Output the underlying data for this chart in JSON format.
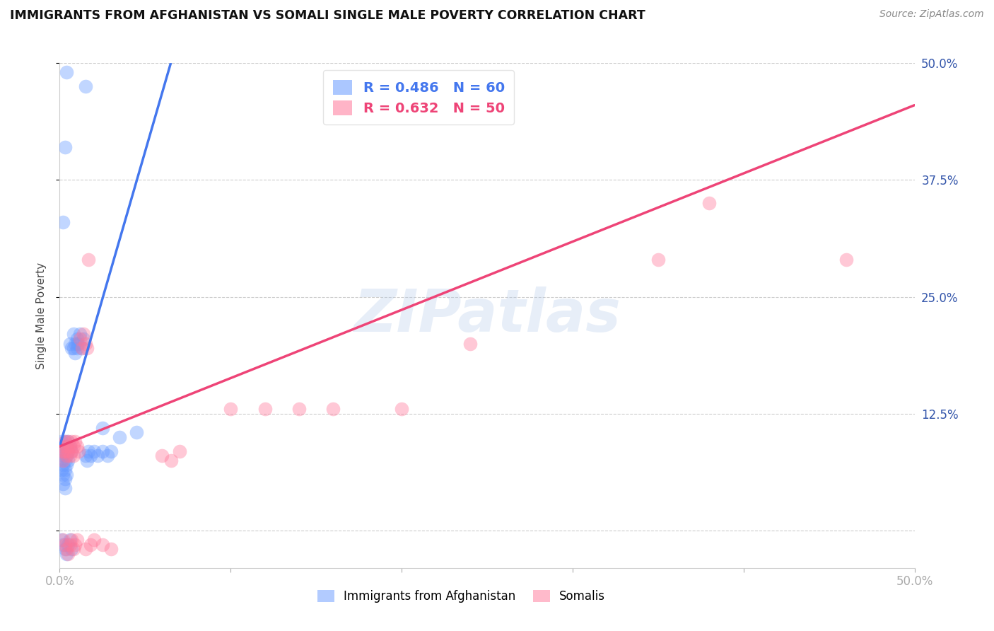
{
  "title": "IMMIGRANTS FROM AFGHANISTAN VS SOMALI SINGLE MALE POVERTY CORRELATION CHART",
  "source": "Source: ZipAtlas.com",
  "ylabel": "Single Male Poverty",
  "legend_entry1": "R = 0.486   N = 60",
  "legend_entry2": "R = 0.632   N = 50",
  "legend_label1": "Immigrants from Afghanistan",
  "legend_label2": "Somalis",
  "watermark": "ZIPatlas",
  "background_color": "#ffffff",
  "blue_color": "#6699ff",
  "pink_color": "#ff7799",
  "blue_trend": [
    -0.005,
    0.5,
    0.07,
    0.5
  ],
  "pink_trend": [
    0.0,
    0.09,
    0.5,
    0.455
  ],
  "xlim": [
    0.0,
    0.5
  ],
  "ylim": [
    -0.04,
    0.5
  ],
  "yticks": [
    0.0,
    0.125,
    0.25,
    0.375,
    0.5
  ],
  "ytick_labels_right": [
    "",
    "12.5%",
    "25.0%",
    "37.5%",
    "50.0%"
  ],
  "xtick_positions": [
    0.0,
    0.1,
    0.2,
    0.3,
    0.4,
    0.5
  ],
  "xtick_labels": [
    "0.0%",
    "",
    "",
    "",
    "",
    "50.0%"
  ],
  "blue_scatter": [
    [
      0.001,
      0.095
    ],
    [
      0.001,
      0.085
    ],
    [
      0.001,
      0.075
    ],
    [
      0.001,
      0.065
    ],
    [
      0.002,
      0.09
    ],
    [
      0.002,
      0.08
    ],
    [
      0.002,
      0.07
    ],
    [
      0.002,
      0.06
    ],
    [
      0.002,
      0.05
    ],
    [
      0.003,
      0.095
    ],
    [
      0.003,
      0.085
    ],
    [
      0.003,
      0.075
    ],
    [
      0.003,
      0.065
    ],
    [
      0.003,
      0.055
    ],
    [
      0.003,
      0.045
    ],
    [
      0.004,
      0.09
    ],
    [
      0.004,
      0.08
    ],
    [
      0.004,
      0.07
    ],
    [
      0.004,
      0.06
    ],
    [
      0.005,
      0.095
    ],
    [
      0.005,
      0.085
    ],
    [
      0.005,
      0.075
    ],
    [
      0.006,
      0.09
    ],
    [
      0.006,
      0.2
    ],
    [
      0.007,
      0.195
    ],
    [
      0.007,
      0.085
    ],
    [
      0.008,
      0.21
    ],
    [
      0.008,
      0.195
    ],
    [
      0.009,
      0.2
    ],
    [
      0.009,
      0.19
    ],
    [
      0.01,
      0.205
    ],
    [
      0.01,
      0.195
    ],
    [
      0.011,
      0.2
    ],
    [
      0.012,
      0.21
    ],
    [
      0.013,
      0.195
    ],
    [
      0.014,
      0.205
    ],
    [
      0.015,
      0.08
    ],
    [
      0.016,
      0.075
    ],
    [
      0.017,
      0.085
    ],
    [
      0.018,
      0.08
    ],
    [
      0.02,
      0.085
    ],
    [
      0.022,
      0.08
    ],
    [
      0.025,
      0.085
    ],
    [
      0.028,
      0.08
    ],
    [
      0.03,
      0.085
    ],
    [
      0.001,
      -0.01
    ],
    [
      0.002,
      -0.015
    ],
    [
      0.003,
      -0.02
    ],
    [
      0.004,
      -0.025
    ],
    [
      0.005,
      -0.015
    ],
    [
      0.006,
      -0.01
    ],
    [
      0.007,
      -0.02
    ],
    [
      0.003,
      0.41
    ],
    [
      0.004,
      0.49
    ],
    [
      0.002,
      0.33
    ],
    [
      0.01,
      0.2
    ],
    [
      0.015,
      0.475
    ],
    [
      0.025,
      0.11
    ],
    [
      0.035,
      0.1
    ],
    [
      0.045,
      0.105
    ]
  ],
  "pink_scatter": [
    [
      0.001,
      0.09
    ],
    [
      0.002,
      0.085
    ],
    [
      0.002,
      0.075
    ],
    [
      0.003,
      0.095
    ],
    [
      0.003,
      0.085
    ],
    [
      0.004,
      0.09
    ],
    [
      0.004,
      0.08
    ],
    [
      0.005,
      0.095
    ],
    [
      0.005,
      0.085
    ],
    [
      0.006,
      0.09
    ],
    [
      0.006,
      0.08
    ],
    [
      0.007,
      0.095
    ],
    [
      0.007,
      0.085
    ],
    [
      0.008,
      0.09
    ],
    [
      0.008,
      0.08
    ],
    [
      0.009,
      0.095
    ],
    [
      0.01,
      0.09
    ],
    [
      0.011,
      0.085
    ],
    [
      0.012,
      0.205
    ],
    [
      0.013,
      0.195
    ],
    [
      0.014,
      0.21
    ],
    [
      0.015,
      0.2
    ],
    [
      0.016,
      0.195
    ],
    [
      0.017,
      0.29
    ],
    [
      0.002,
      -0.01
    ],
    [
      0.003,
      -0.015
    ],
    [
      0.004,
      -0.02
    ],
    [
      0.005,
      -0.025
    ],
    [
      0.006,
      -0.015
    ],
    [
      0.007,
      -0.01
    ],
    [
      0.008,
      -0.02
    ],
    [
      0.009,
      -0.015
    ],
    [
      0.01,
      -0.01
    ],
    [
      0.015,
      -0.02
    ],
    [
      0.018,
      -0.015
    ],
    [
      0.02,
      -0.01
    ],
    [
      0.025,
      -0.015
    ],
    [
      0.03,
      -0.02
    ],
    [
      0.06,
      0.08
    ],
    [
      0.065,
      0.075
    ],
    [
      0.07,
      0.085
    ],
    [
      0.1,
      0.13
    ],
    [
      0.12,
      0.13
    ],
    [
      0.14,
      0.13
    ],
    [
      0.16,
      0.13
    ],
    [
      0.2,
      0.13
    ],
    [
      0.24,
      0.2
    ],
    [
      0.35,
      0.29
    ],
    [
      0.38,
      0.35
    ],
    [
      0.46,
      0.29
    ]
  ]
}
